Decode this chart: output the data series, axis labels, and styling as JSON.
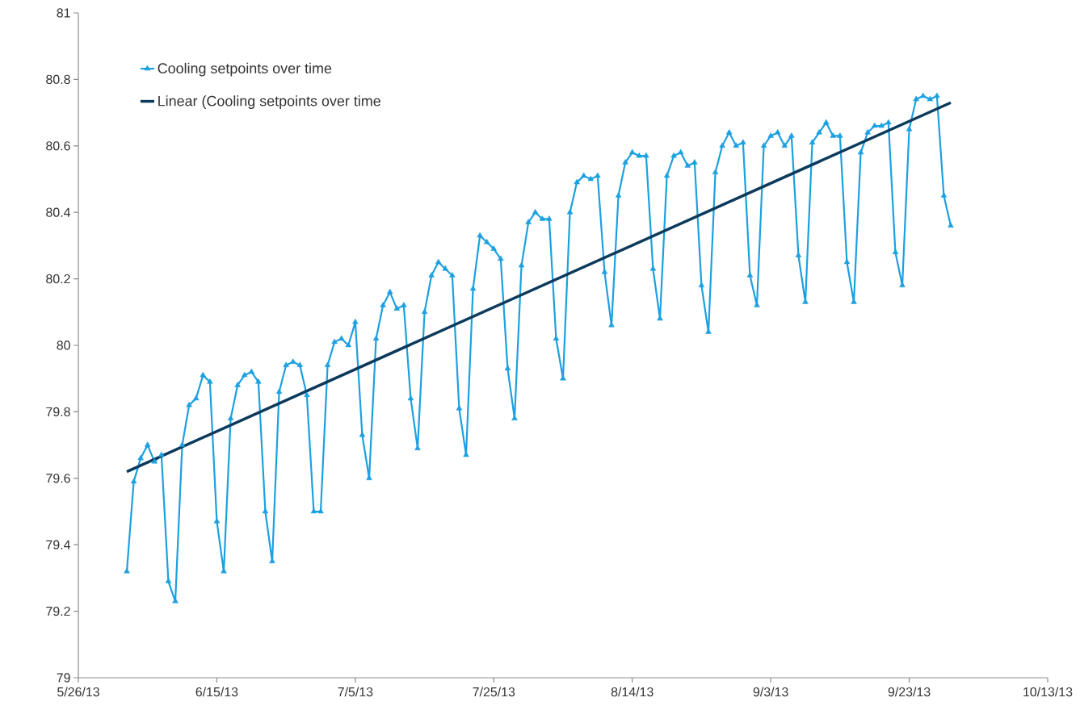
{
  "chart_data": {
    "type": "line",
    "x": [
      "2013-06-02",
      "2013-06-03",
      "2013-06-04",
      "2013-06-05",
      "2013-06-06",
      "2013-06-07",
      "2013-06-08",
      "2013-06-09",
      "2013-06-10",
      "2013-06-11",
      "2013-06-12",
      "2013-06-13",
      "2013-06-14",
      "2013-06-15",
      "2013-06-16",
      "2013-06-17",
      "2013-06-18",
      "2013-06-19",
      "2013-06-20",
      "2013-06-21",
      "2013-06-22",
      "2013-06-23",
      "2013-06-24",
      "2013-06-25",
      "2013-06-26",
      "2013-06-27",
      "2013-06-28",
      "2013-06-29",
      "2013-06-30",
      "2013-07-01",
      "2013-07-02",
      "2013-07-03",
      "2013-07-04",
      "2013-07-05",
      "2013-07-06",
      "2013-07-07",
      "2013-07-08",
      "2013-07-09",
      "2013-07-10",
      "2013-07-11",
      "2013-07-12",
      "2013-07-13",
      "2013-07-14",
      "2013-07-15",
      "2013-07-16",
      "2013-07-17",
      "2013-07-18",
      "2013-07-19",
      "2013-07-20",
      "2013-07-21",
      "2013-07-22",
      "2013-07-23",
      "2013-07-24",
      "2013-07-25",
      "2013-07-26",
      "2013-07-27",
      "2013-07-28",
      "2013-07-29",
      "2013-07-30",
      "2013-07-31",
      "2013-08-01",
      "2013-08-02",
      "2013-08-03",
      "2013-08-04",
      "2013-08-05",
      "2013-08-06",
      "2013-08-07",
      "2013-08-08",
      "2013-08-09",
      "2013-08-10",
      "2013-08-11",
      "2013-08-12",
      "2013-08-13",
      "2013-08-14",
      "2013-08-15",
      "2013-08-16",
      "2013-08-17",
      "2013-08-18",
      "2013-08-19",
      "2013-08-20",
      "2013-08-21",
      "2013-08-22",
      "2013-08-23",
      "2013-08-24",
      "2013-08-25",
      "2013-08-26",
      "2013-08-27",
      "2013-08-28",
      "2013-08-29",
      "2013-08-30",
      "2013-08-31",
      "2013-09-01",
      "2013-09-02",
      "2013-09-03",
      "2013-09-04",
      "2013-09-05",
      "2013-09-06",
      "2013-09-07",
      "2013-09-08",
      "2013-09-09",
      "2013-09-10",
      "2013-09-11",
      "2013-09-12",
      "2013-09-13",
      "2013-09-14",
      "2013-09-15",
      "2013-09-16",
      "2013-09-17",
      "2013-09-18",
      "2013-09-19",
      "2013-09-20",
      "2013-09-21",
      "2013-09-22",
      "2013-09-23",
      "2013-09-24",
      "2013-09-25",
      "2013-09-26",
      "2013-09-27",
      "2013-09-28",
      "2013-09-29"
    ],
    "series": [
      {
        "name": "Cooling setpoints over time",
        "color": "#1ca0e0",
        "marker": "triangle",
        "values": [
          79.32,
          79.59,
          79.66,
          79.7,
          79.65,
          79.67,
          79.29,
          79.23,
          79.7,
          79.82,
          79.84,
          79.91,
          79.89,
          79.47,
          79.32,
          79.78,
          79.88,
          79.91,
          79.92,
          79.89,
          79.5,
          79.35,
          79.86,
          79.94,
          79.95,
          79.94,
          79.85,
          79.5,
          79.5,
          79.94,
          80.01,
          80.02,
          80.0,
          80.07,
          79.73,
          79.6,
          80.02,
          80.12,
          80.16,
          80.11,
          80.12,
          79.84,
          79.69,
          80.1,
          80.21,
          80.25,
          80.23,
          80.21,
          79.81,
          79.67,
          80.17,
          80.33,
          80.31,
          80.29,
          80.26,
          79.93,
          79.78,
          80.24,
          80.37,
          80.4,
          80.38,
          80.38,
          80.02,
          79.9,
          80.4,
          80.49,
          80.51,
          80.5,
          80.51,
          80.22,
          80.06,
          80.45,
          80.55,
          80.58,
          80.57,
          80.57,
          80.23,
          80.08,
          80.51,
          80.57,
          80.58,
          80.54,
          80.55,
          80.18,
          80.04,
          80.52,
          80.6,
          80.64,
          80.6,
          80.61,
          80.21,
          80.12,
          80.6,
          80.63,
          80.64,
          80.6,
          80.63,
          80.27,
          80.13,
          80.61,
          80.64,
          80.67,
          80.63,
          80.63,
          80.25,
          80.13,
          80.58,
          80.64,
          80.66,
          80.66,
          80.67,
          80.28,
          80.18,
          80.65,
          80.74,
          80.75,
          80.74,
          80.75,
          80.45,
          80.36
        ]
      },
      {
        "name": "Linear (Cooling setpoints over time",
        "type": "line",
        "color": "#0b3a5c",
        "marker": "none",
        "x": [
          "2013-06-02",
          "2013-09-29"
        ],
        "values": [
          79.62,
          80.73
        ]
      }
    ],
    "xlim": [
      "2013-05-26",
      "2013-10-13"
    ],
    "xticks": [
      {
        "value": "2013-05-26",
        "label": "5/26/13"
      },
      {
        "value": "2013-06-15",
        "label": "6/15/13"
      },
      {
        "value": "2013-07-05",
        "label": "7/5/13"
      },
      {
        "value": "2013-07-25",
        "label": "7/25/13"
      },
      {
        "value": "2013-08-14",
        "label": "8/14/13"
      },
      {
        "value": "2013-09-03",
        "label": "9/3/13"
      },
      {
        "value": "2013-09-23",
        "label": "9/23/13"
      },
      {
        "value": "2013-10-13",
        "label": "10/13/13"
      }
    ],
    "ylim": [
      79,
      81
    ],
    "yticks": [
      79,
      79.2,
      79.4,
      79.6,
      79.8,
      80,
      80.2,
      80.4,
      80.6,
      80.8,
      81
    ],
    "legend": "top left",
    "grid": false
  }
}
